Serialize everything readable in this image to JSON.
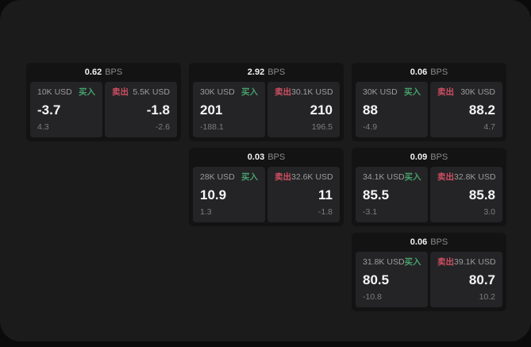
{
  "labels": {
    "bps_unit": "BPS",
    "buy": "买入",
    "sell": "卖出"
  },
  "colors": {
    "surface": "#1b1b1c",
    "card": "#131314",
    "panel": "#242426",
    "buy": "#46a06a",
    "sell": "#cf4f63"
  },
  "cards": [
    {
      "bps": "0.62",
      "buy": {
        "size": "10K USD",
        "price": "-3.7",
        "sub": "4.3"
      },
      "sell": {
        "size": "5.5K USD",
        "price": "-1.8",
        "sub": "-2.6"
      }
    },
    {
      "bps": "2.92",
      "buy": {
        "size": "30K USD",
        "price": "201",
        "sub": "-188.1"
      },
      "sell": {
        "size": "30.1K USD",
        "price": "210",
        "sub": "196.5"
      }
    },
    {
      "bps": "0.06",
      "buy": {
        "size": "30K USD",
        "price": "88",
        "sub": "-4.9"
      },
      "sell": {
        "size": "30K USD",
        "price": "88.2",
        "sub": "4.7"
      }
    },
    {
      "bps": "0.03",
      "buy": {
        "size": "28K USD",
        "price": "10.9",
        "sub": "1.3"
      },
      "sell": {
        "size": "32.6K USD",
        "price": "11",
        "sub": "-1.8"
      }
    },
    {
      "bps": "0.09",
      "buy": {
        "size": "34.1K USD",
        "price": "85.5",
        "sub": "-3.1"
      },
      "sell": {
        "size": "32.8K USD",
        "price": "85.8",
        "sub": "3.0"
      }
    },
    {
      "bps": "0.06",
      "buy": {
        "size": "31.8K USD",
        "price": "80.5",
        "sub": "-10.8"
      },
      "sell": {
        "size": "39.1K USD",
        "price": "80.7",
        "sub": "10.2"
      }
    }
  ]
}
